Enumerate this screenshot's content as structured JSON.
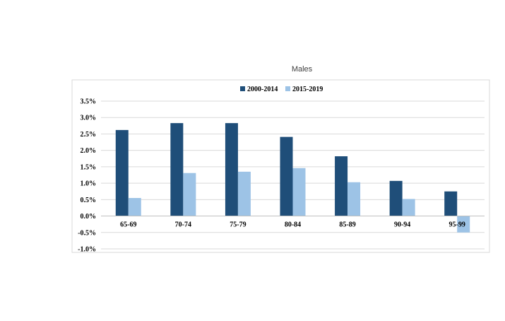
{
  "chart_data": {
    "type": "bar",
    "title": "Males",
    "categories": [
      "65-69",
      "70-74",
      "75-79",
      "80-84",
      "85-89",
      "90-94",
      "95-99"
    ],
    "series": [
      {
        "name": "2000-2014",
        "color": "#1f4e79",
        "values": [
          0.0262,
          0.0283,
          0.0283,
          0.0241,
          0.0182,
          0.0107,
          0.0075
        ]
      },
      {
        "name": "2015-2019",
        "color": "#9dc3e6",
        "values": [
          0.0055,
          0.0131,
          0.0135,
          0.0146,
          0.0103,
          0.0052,
          -0.005
        ]
      }
    ],
    "y_ticks": [
      "3.5%",
      "3.0%",
      "2.5%",
      "2.0%",
      "1.5%",
      "1.0%",
      "0.5%",
      "0.0%",
      "-0.5%",
      "-1.0%"
    ],
    "ylim": [
      -0.01,
      0.035
    ],
    "xlabel": "",
    "ylabel": "",
    "grid": true,
    "legend_position": "top"
  }
}
